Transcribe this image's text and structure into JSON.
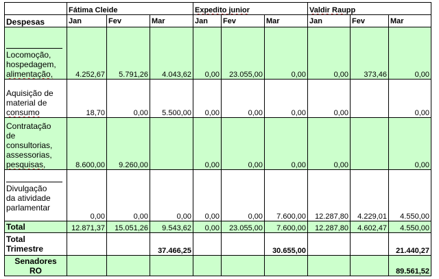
{
  "header": {
    "senators": [
      "Fátima Cleide",
      "Expedito junior",
      "Valdir Raupp"
    ],
    "despesas_label": "Despesas",
    "months": [
      "Jan",
      "Fev",
      "Mar",
      "Jan",
      "Fev",
      "Mar",
      "Jan",
      "Fev",
      "Mar"
    ]
  },
  "rows": [
    {
      "label_lines": [
        "Locomoção,",
        "hospedagem,",
        "alimentação,"
      ],
      "values": [
        "4.252,67",
        "5.791,26",
        "4.043,62",
        "0,00",
        "23.055,00",
        "0,00",
        "0,00",
        "373,46",
        "0,00"
      ]
    },
    {
      "label_lines": [
        "Aquisição de",
        "material de",
        "consumo"
      ],
      "values": [
        "18,70",
        "0,00",
        "5.500,00",
        "0,00",
        "0,00",
        "0,00",
        "0,00",
        "",
        "0,00"
      ]
    },
    {
      "label_lines": [
        "Contratação",
        "de",
        "consultorias,",
        "assessorias,",
        "pesquisas,"
      ],
      "values": [
        "8.600,00",
        "9.260,00",
        "",
        "0,00",
        "0,00",
        "0,00",
        "0,00",
        "",
        "0,00"
      ]
    },
    {
      "label_lines": [
        "Divulgação",
        "da atividade",
        "parlamentar"
      ],
      "values": [
        "0,00",
        "0,00",
        "0,00",
        "0,00",
        "0,00",
        "7.600,00",
        "12.287,80",
        "4.229,01",
        "4.550,00"
      ]
    }
  ],
  "total": {
    "label": "Total",
    "values": [
      "12.871,37",
      "15.051,26",
      "9.543,62",
      "0,00",
      "23.055,00",
      "7.600,00",
      "12.287,80",
      "4.602,47",
      "4.550,00"
    ]
  },
  "trimestre": {
    "label_lines": [
      "Total",
      "Trimestre"
    ],
    "values": [
      "37.466,25",
      "30.655,00",
      "21.440,27"
    ]
  },
  "senadores": {
    "label_lines": [
      "Senadores",
      "RO"
    ],
    "value": "89.561,52"
  },
  "colors": {
    "fill_green": "#ccffcc",
    "fill_white": "#ffffff",
    "grid": "#000000"
  }
}
